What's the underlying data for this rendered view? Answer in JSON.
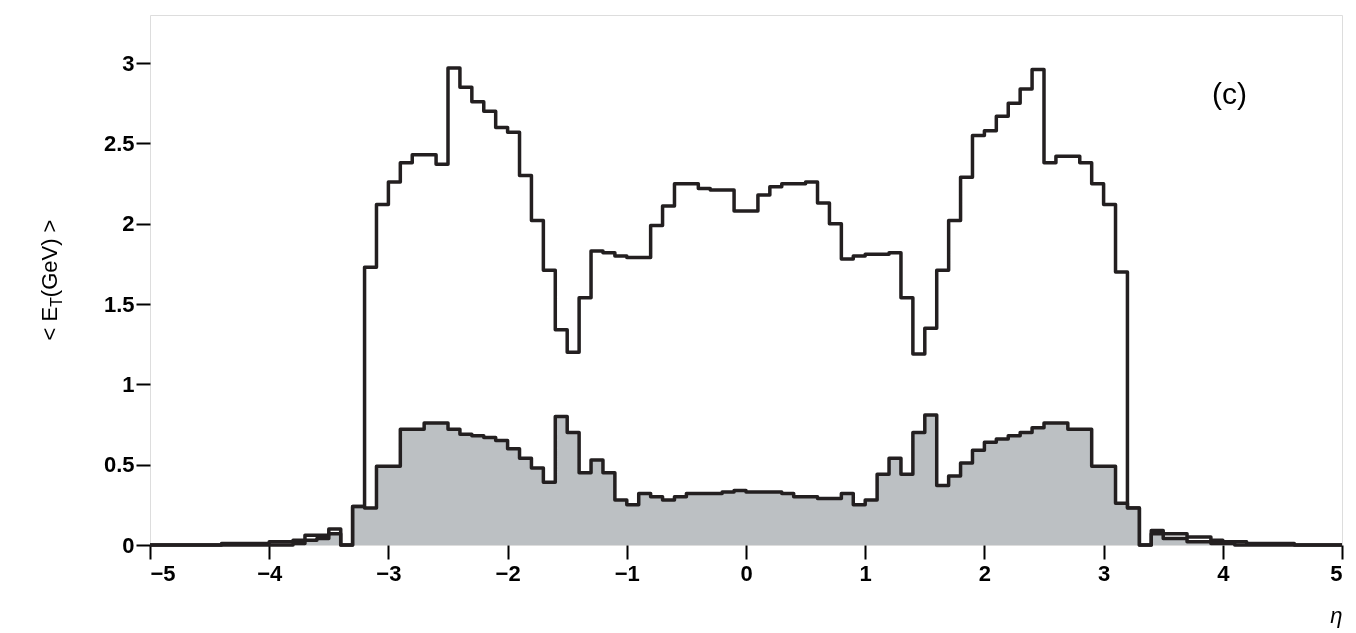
{
  "chart_data": {
    "type": "step",
    "xlabel": "η",
    "ylabel": "< E$_{T}$(GeV) >",
    "annotations": [
      "(c)"
    ],
    "series": [
      {
        "type": "step",
        "color": "#231f20",
        "x": [
          -5.0,
          -4.9,
          -4.8,
          -4.7,
          -4.6,
          -4.5,
          -4.4,
          -4.3,
          -4.2,
          -4.1,
          -4.0,
          -3.9,
          -3.8,
          -3.7,
          -3.6,
          -3.5,
          -3.4,
          -3.3,
          -3.2,
          -3.1,
          -3.0,
          -2.9,
          -2.8,
          -2.7,
          -2.6,
          -2.5,
          -2.4,
          -2.3,
          -2.2,
          -2.1,
          -2.0,
          -1.9,
          -1.8,
          -1.7,
          -1.6,
          -1.5,
          -1.4,
          -1.3,
          -1.2,
          -1.1,
          -1.0,
          -0.9,
          -0.8,
          -0.7,
          -0.6,
          -0.5,
          -0.4,
          -0.3,
          -0.2,
          -0.1,
          0.0,
          0.1,
          0.2,
          0.3,
          0.4,
          0.5,
          0.6,
          0.7,
          0.8,
          0.9,
          1.0,
          1.1,
          1.2,
          1.3,
          1.4,
          1.5,
          1.6,
          1.7,
          1.8,
          1.9,
          2.0,
          2.1,
          2.2,
          2.3,
          2.4,
          2.5,
          2.6,
          2.7,
          2.8,
          2.9,
          3.0,
          3.1,
          3.2,
          3.3,
          3.4,
          3.5,
          3.6,
          3.7,
          3.8,
          3.9,
          4.0,
          4.1,
          4.2,
          4.3,
          4.4,
          4.5,
          4.6,
          4.7,
          4.8,
          4.9,
          5.0
        ],
        "values": [
          0,
          0,
          0,
          0,
          0,
          0,
          0.01,
          0.01,
          0.01,
          0.01,
          0.02,
          0.02,
          0.03,
          0.06,
          0.06,
          0.1,
          0,
          0.24,
          1.73,
          2.12,
          2.26,
          2.38,
          2.43,
          2.43,
          2.37,
          2.97,
          2.85,
          2.76,
          2.7,
          2.6,
          2.57,
          2.3,
          2.02,
          1.71,
          1.34,
          1.2,
          1.54,
          1.83,
          1.82,
          1.8,
          1.79,
          1.79,
          1.99,
          2.11,
          2.25,
          2.25,
          2.22,
          2.21,
          2.21,
          2.08,
          2.08,
          2.18,
          2.23,
          2.25,
          2.25,
          2.26,
          2.13,
          2.0,
          1.78,
          1.8,
          1.81,
          1.81,
          1.82,
          1.54,
          1.19,
          1.35,
          1.71,
          2.02,
          2.29,
          2.55,
          2.58,
          2.67,
          2.75,
          2.84,
          2.96,
          2.38,
          2.42,
          2.42,
          2.38,
          2.25,
          2.12,
          1.7,
          0.23,
          0,
          0.09,
          0.07,
          0.07,
          0.05,
          0.05,
          0.03,
          0.02,
          0.02,
          0.01,
          0.01,
          0.01,
          0.01,
          0,
          0,
          0,
          0,
          0
        ]
      },
      {
        "type": "area",
        "color": "#a0a5aa",
        "x": [
          -5.0,
          -4.9,
          -4.8,
          -4.7,
          -4.6,
          -4.5,
          -4.4,
          -4.3,
          -4.2,
          -4.1,
          -4.0,
          -3.9,
          -3.8,
          -3.7,
          -3.6,
          -3.5,
          -3.4,
          -3.3,
          -3.2,
          -3.1,
          -3.0,
          -2.9,
          -2.8,
          -2.7,
          -2.6,
          -2.5,
          -2.4,
          -2.3,
          -2.2,
          -2.1,
          -2.0,
          -1.9,
          -1.8,
          -1.7,
          -1.6,
          -1.5,
          -1.4,
          -1.3,
          -1.2,
          -1.1,
          -1.0,
          -0.9,
          -0.8,
          -0.7,
          -0.6,
          -0.5,
          -0.4,
          -0.3,
          -0.2,
          -0.1,
          0.0,
          0.1,
          0.2,
          0.3,
          0.4,
          0.5,
          0.6,
          0.7,
          0.8,
          0.9,
          1.0,
          1.1,
          1.2,
          1.3,
          1.4,
          1.5,
          1.6,
          1.7,
          1.8,
          1.9,
          2.0,
          2.1,
          2.2,
          2.3,
          2.4,
          2.5,
          2.6,
          2.7,
          2.8,
          2.9,
          3.0,
          3.1,
          3.2,
          3.3,
          3.4,
          3.5,
          3.6,
          3.7,
          3.8,
          3.9,
          4.0,
          4.1,
          4.2,
          4.3,
          4.4,
          4.5,
          4.6,
          4.7,
          4.8,
          4.9,
          5.0
        ],
        "values": [
          0,
          0,
          0,
          0,
          0,
          0,
          0,
          0,
          0,
          0,
          0,
          0,
          0.01,
          0.03,
          0.04,
          0.07,
          0,
          0.24,
          0.23,
          0.49,
          0.49,
          0.72,
          0.72,
          0.76,
          0.76,
          0.72,
          0.69,
          0.68,
          0.67,
          0.65,
          0.6,
          0.54,
          0.48,
          0.39,
          0.8,
          0.7,
          0.45,
          0.53,
          0.45,
          0.28,
          0.25,
          0.32,
          0.3,
          0.28,
          0.3,
          0.32,
          0.32,
          0.32,
          0.33,
          0.34,
          0.33,
          0.33,
          0.33,
          0.32,
          0.3,
          0.3,
          0.29,
          0.29,
          0.32,
          0.25,
          0.28,
          0.44,
          0.54,
          0.44,
          0.7,
          0.81,
          0.37,
          0.43,
          0.51,
          0.59,
          0.64,
          0.66,
          0.68,
          0.7,
          0.73,
          0.76,
          0.76,
          0.72,
          0.72,
          0.49,
          0.49,
          0.26,
          0.23,
          0,
          0.07,
          0.04,
          0.04,
          0.02,
          0.02,
          0.01,
          0.01,
          0,
          0,
          0,
          0,
          0,
          0,
          0,
          0,
          0,
          0
        ]
      }
    ],
    "xlim": [
      -5,
      5
    ],
    "xticks": [
      -5,
      -4,
      -3,
      -2,
      -1,
      0,
      1,
      2,
      3,
      4,
      5
    ],
    "ylim": [
      0,
      3.3
    ],
    "yticks": [
      0,
      0.5,
      1,
      1.5,
      2,
      2.5,
      3
    ],
    "grid": false
  }
}
